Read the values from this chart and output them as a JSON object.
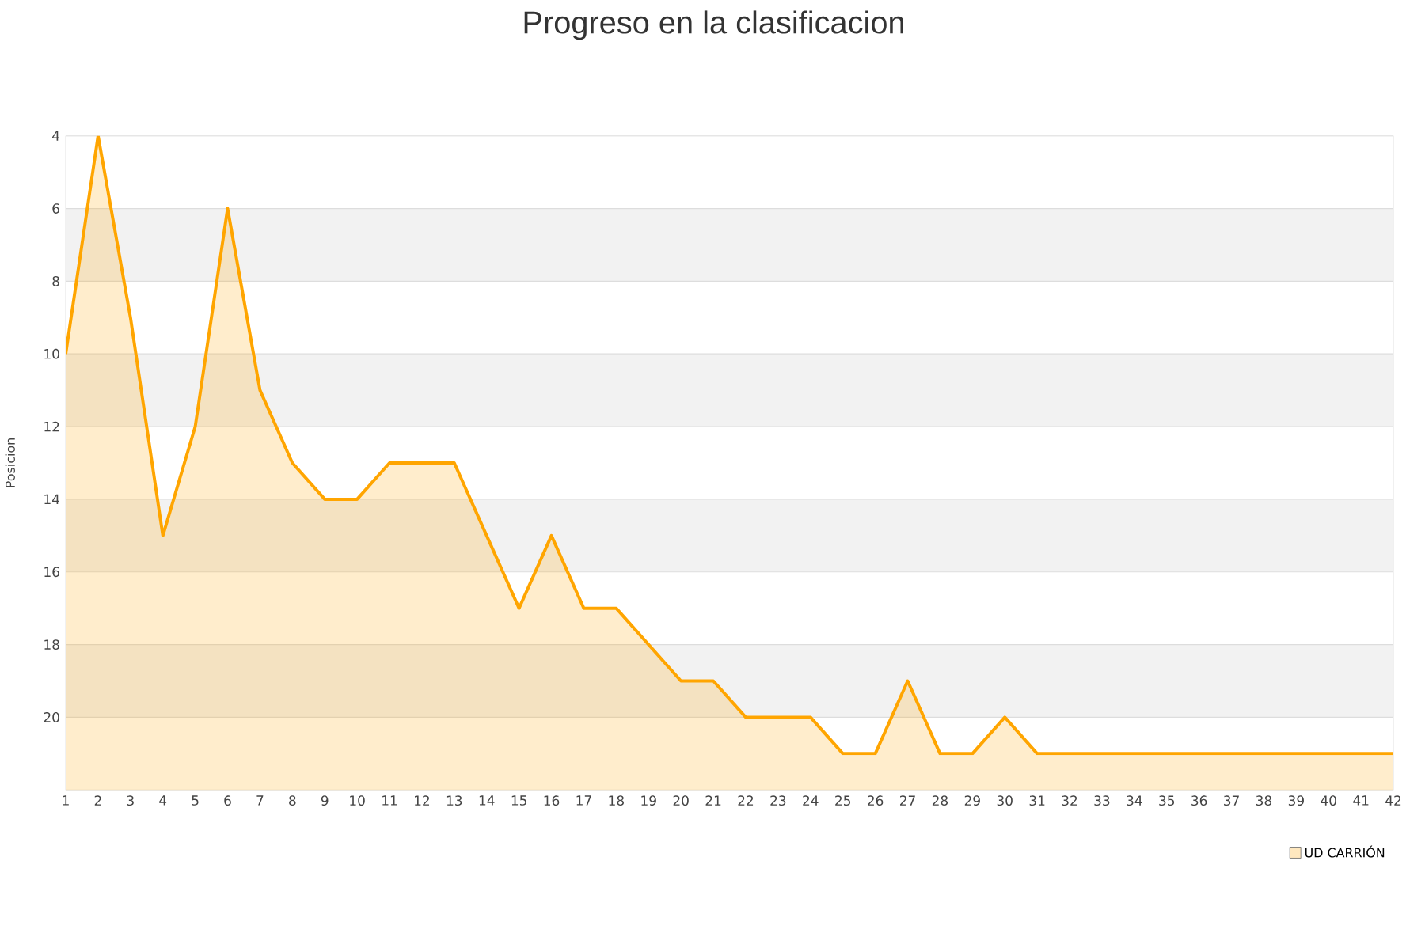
{
  "chart_data": {
    "type": "area",
    "title": "Progreso en la clasificacion",
    "ylabel": "Posicion",
    "x": [
      1,
      2,
      3,
      4,
      5,
      6,
      7,
      8,
      9,
      10,
      11,
      12,
      13,
      14,
      15,
      16,
      17,
      18,
      19,
      20,
      21,
      22,
      23,
      24,
      25,
      26,
      27,
      28,
      29,
      30,
      31,
      32,
      33,
      34,
      35,
      36,
      37,
      38,
      39,
      40,
      41,
      42
    ],
    "series": [
      {
        "name": "UD CARRIÓN",
        "color": "#ffa500",
        "values": [
          10,
          4,
          9,
          15,
          12,
          6,
          11,
          13,
          14,
          14,
          13,
          13,
          13,
          15,
          17,
          15,
          17,
          17,
          18,
          19,
          19,
          20,
          20,
          20,
          21,
          21,
          19,
          21,
          21,
          20,
          21,
          21,
          21,
          21,
          21,
          21,
          21,
          21,
          21,
          21,
          21,
          21
        ]
      }
    ],
    "xlim": [
      1,
      42
    ],
    "xticks": [
      1,
      2,
      3,
      4,
      5,
      6,
      7,
      8,
      9,
      10,
      11,
      12,
      13,
      14,
      15,
      16,
      17,
      18,
      19,
      20,
      21,
      22,
      23,
      24,
      25,
      26,
      27,
      28,
      29,
      30,
      31,
      32,
      33,
      34,
      35,
      36,
      37,
      38,
      39,
      40,
      41,
      42
    ],
    "ylim": [
      22,
      4
    ],
    "yticks": [
      4,
      6,
      8,
      10,
      12,
      14,
      16,
      18,
      20
    ],
    "bands": [
      {
        "axis": "y",
        "from": 6,
        "to": 8,
        "color": "#f2f2f2"
      },
      {
        "axis": "y",
        "from": 10,
        "to": 12,
        "color": "#f2f2f2"
      },
      {
        "axis": "y",
        "from": 14,
        "to": 16,
        "color": "#f2f2f2"
      },
      {
        "axis": "y",
        "from": 18,
        "to": 20,
        "color": "#f2f2f2"
      }
    ],
    "grid": "y",
    "legend": "bottom right",
    "marker": "none",
    "line_style": "solid"
  }
}
